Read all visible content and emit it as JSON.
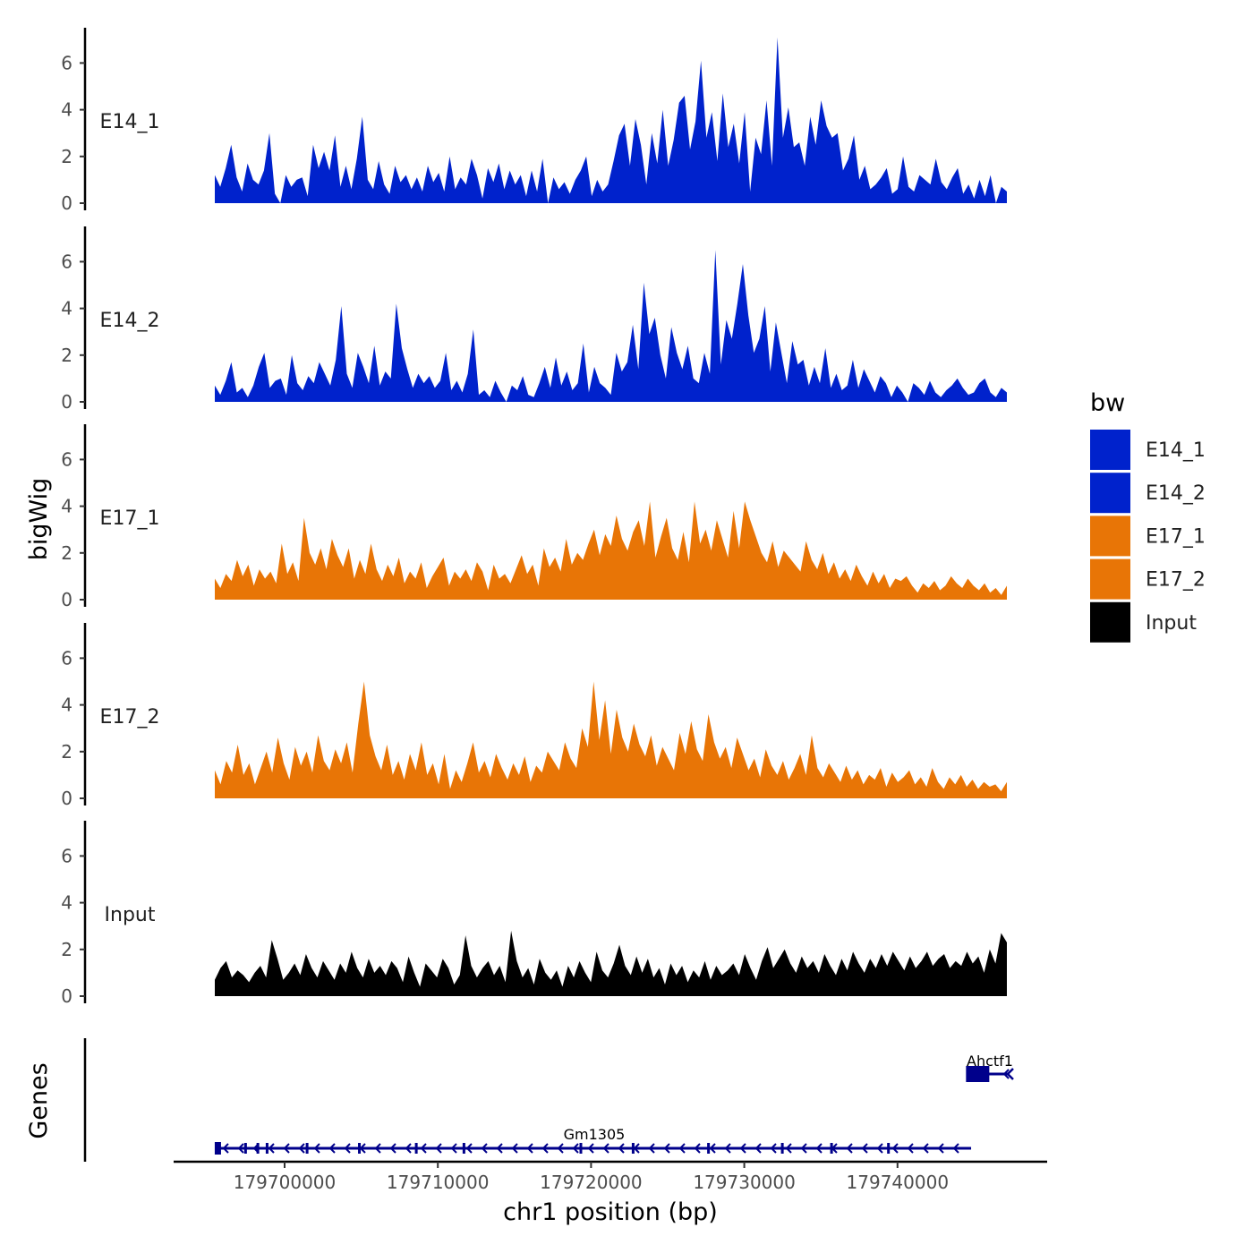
{
  "chart_data": {
    "type": "area",
    "title": "",
    "ylabel": "bigWig",
    "xlabel": "chr1 position (bp)",
    "gene_track_label": "Genes",
    "ylim": [
      0,
      7.3
    ],
    "yticks": [
      0,
      2,
      4,
      6
    ],
    "xlim": [
      179693000,
      179749000
    ],
    "xticks": [
      179700000,
      179710000,
      179720000,
      179730000,
      179740000
    ],
    "x_start": 179696200,
    "x_end": 179747700,
    "legend": {
      "title": "bw",
      "position": "right",
      "entries": [
        {
          "label": "E14_1",
          "color": "#0022CC"
        },
        {
          "label": "E14_2",
          "color": "#0022CC"
        },
        {
          "label": "E17_1",
          "color": "#E87506"
        },
        {
          "label": "E17_2",
          "color": "#E87506"
        },
        {
          "label": "Input",
          "color": "#000000"
        }
      ]
    },
    "series": [
      {
        "name": "E14_1",
        "color": "#0022CC",
        "values": [
          1.2,
          0.7,
          1.5,
          2.5,
          1.1,
          0.5,
          1.7,
          1.0,
          0.8,
          1.4,
          3.0,
          0.4,
          0.0,
          1.2,
          0.7,
          1.0,
          1.1,
          0.3,
          2.5,
          1.5,
          2.2,
          1.4,
          2.9,
          0.7,
          1.6,
          0.6,
          1.9,
          3.7,
          1.0,
          0.6,
          1.8,
          0.8,
          0.4,
          1.6,
          0.9,
          1.2,
          0.6,
          1.1,
          0.5,
          1.6,
          0.9,
          1.3,
          0.5,
          2.0,
          0.6,
          1.1,
          0.8,
          1.9,
          1.2,
          0.2,
          1.5,
          0.9,
          1.7,
          0.6,
          1.4,
          0.8,
          1.2,
          0.3,
          1.4,
          0.5,
          1.9,
          0.0,
          1.1,
          0.6,
          0.9,
          0.4,
          1.0,
          1.4,
          2.0,
          0.3,
          1.0,
          0.5,
          0.8,
          1.8,
          2.9,
          3.4,
          1.6,
          3.6,
          2.5,
          0.8,
          3.0,
          1.7,
          4.0,
          1.6,
          2.7,
          4.3,
          4.6,
          2.3,
          3.5,
          6.1,
          2.8,
          3.9,
          1.8,
          4.7,
          2.4,
          3.4,
          1.7,
          3.9,
          0.5,
          2.8,
          2.1,
          4.4,
          1.6,
          7.1,
          2.8,
          4.1,
          2.4,
          2.6,
          1.6,
          3.7,
          2.5,
          4.4,
          3.3,
          2.8,
          3.0,
          1.4,
          1.9,
          2.9,
          1.0,
          1.6,
          0.6,
          0.8,
          1.1,
          1.5,
          0.4,
          0.6,
          2.0,
          0.7,
          0.5,
          1.2,
          1.0,
          0.8,
          1.9,
          0.9,
          0.6,
          1.1,
          1.5,
          0.4,
          0.8,
          0.2,
          1.0,
          0.3,
          1.2,
          0.0,
          0.7,
          0.5
        ]
      },
      {
        "name": "E14_2",
        "color": "#0022CC",
        "values": [
          0.7,
          0.3,
          0.9,
          1.7,
          0.4,
          0.6,
          0.2,
          0.7,
          1.5,
          2.1,
          0.6,
          0.9,
          1.0,
          0.3,
          2.0,
          0.8,
          0.5,
          1.1,
          0.8,
          1.7,
          1.2,
          0.7,
          1.8,
          4.1,
          1.2,
          0.6,
          2.1,
          1.5,
          0.8,
          2.4,
          0.7,
          1.3,
          1.0,
          4.2,
          2.3,
          1.4,
          0.6,
          1.2,
          0.8,
          1.1,
          0.6,
          0.9,
          2.1,
          0.5,
          0.9,
          0.4,
          1.2,
          3.1,
          0.3,
          0.5,
          0.2,
          0.9,
          0.4,
          0.0,
          0.7,
          0.5,
          1.1,
          0.3,
          0.2,
          0.8,
          1.5,
          0.6,
          1.9,
          0.7,
          1.3,
          0.5,
          0.8,
          2.5,
          0.4,
          1.5,
          0.8,
          0.6,
          0.3,
          2.1,
          1.3,
          1.7,
          3.3,
          1.4,
          5.1,
          2.9,
          3.6,
          2.0,
          1.0,
          3.2,
          2.1,
          1.4,
          2.4,
          1.0,
          0.8,
          2.1,
          1.2,
          6.5,
          1.6,
          3.5,
          2.7,
          4.2,
          5.9,
          3.7,
          2.1,
          2.7,
          4.1,
          1.3,
          3.4,
          2.1,
          0.8,
          2.6,
          1.6,
          1.8,
          0.7,
          1.5,
          0.8,
          2.3,
          0.6,
          1.2,
          0.5,
          0.7,
          1.8,
          0.6,
          1.4,
          0.9,
          0.4,
          1.1,
          0.8,
          0.2,
          0.7,
          0.4,
          0.0,
          0.8,
          0.6,
          0.3,
          0.9,
          0.4,
          0.2,
          0.5,
          0.7,
          1.0,
          0.6,
          0.3,
          0.4,
          0.8,
          1.0,
          0.4,
          0.2,
          0.6,
          0.4
        ]
      },
      {
        "name": "E17_1",
        "color": "#E87506",
        "values": [
          0.9,
          0.5,
          1.1,
          0.8,
          1.7,
          1.0,
          1.5,
          0.6,
          1.3,
          0.9,
          1.2,
          0.7,
          2.4,
          1.1,
          1.6,
          0.8,
          3.5,
          2.0,
          1.5,
          2.2,
          1.3,
          2.6,
          1.9,
          1.4,
          2.2,
          0.9,
          1.7,
          1.1,
          2.4,
          1.3,
          0.8,
          1.5,
          1.0,
          1.8,
          0.7,
          1.2,
          0.9,
          1.6,
          0.5,
          1.0,
          1.4,
          1.8,
          0.6,
          1.2,
          0.9,
          1.3,
          0.8,
          1.6,
          1.2,
          0.4,
          1.5,
          0.9,
          1.1,
          0.7,
          1.3,
          1.9,
          1.1,
          1.5,
          0.6,
          2.2,
          1.4,
          1.8,
          1.2,
          2.6,
          1.5,
          2.0,
          1.7,
          2.4,
          3.0,
          1.9,
          2.8,
          2.3,
          3.6,
          2.6,
          2.1,
          2.9,
          3.4,
          2.3,
          4.2,
          1.8,
          2.7,
          3.5,
          2.2,
          1.7,
          2.9,
          1.6,
          4.2,
          2.4,
          3.0,
          2.1,
          3.4,
          2.6,
          1.8,
          3.8,
          2.2,
          4.2,
          3.4,
          2.7,
          2.0,
          1.6,
          2.5,
          1.4,
          2.1,
          1.8,
          1.5,
          1.2,
          2.5,
          1.7,
          1.3,
          2.0,
          1.1,
          1.6,
          0.9,
          1.3,
          0.8,
          1.5,
          1.0,
          0.6,
          1.2,
          0.7,
          1.1,
          0.5,
          0.9,
          0.8,
          1.0,
          0.6,
          0.3,
          0.7,
          0.5,
          0.8,
          0.4,
          0.6,
          1.0,
          0.7,
          0.5,
          0.9,
          0.6,
          0.4,
          0.7,
          0.3,
          0.5,
          0.2,
          0.6
        ]
      },
      {
        "name": "E17_2",
        "color": "#E87506",
        "values": [
          1.2,
          0.6,
          1.6,
          1.1,
          2.3,
          1.0,
          1.5,
          0.6,
          1.3,
          2.0,
          1.1,
          2.6,
          1.5,
          0.8,
          2.2,
          1.4,
          2.0,
          1.1,
          2.7,
          1.6,
          1.2,
          2.1,
          1.5,
          2.4,
          1.1,
          3.2,
          5.0,
          2.7,
          1.8,
          1.2,
          2.3,
          1.0,
          1.6,
          0.8,
          1.9,
          1.2,
          2.4,
          1.0,
          1.5,
          0.6,
          1.9,
          0.4,
          1.2,
          0.7,
          1.5,
          2.4,
          1.1,
          1.6,
          0.9,
          1.9,
          1.3,
          0.8,
          1.5,
          1.0,
          1.8,
          0.7,
          1.4,
          1.1,
          2.0,
          1.6,
          1.2,
          2.4,
          1.7,
          1.3,
          3.0,
          2.2,
          5.0,
          2.5,
          4.2,
          1.9,
          3.8,
          2.6,
          2.0,
          3.2,
          2.3,
          1.8,
          2.7,
          1.4,
          2.2,
          1.7,
          1.2,
          2.8,
          1.9,
          3.3,
          2.1,
          1.6,
          3.6,
          2.4,
          1.7,
          2.2,
          1.3,
          2.6,
          1.9,
          1.2,
          1.7,
          0.9,
          2.1,
          1.4,
          1.0,
          1.6,
          0.8,
          1.3,
          1.9,
          1.0,
          2.7,
          1.3,
          0.9,
          1.5,
          1.1,
          0.7,
          1.4,
          0.8,
          1.2,
          0.6,
          1.0,
          0.8,
          1.3,
          0.5,
          1.1,
          0.7,
          0.9,
          1.2,
          0.6,
          0.9,
          0.5,
          1.3,
          0.7,
          0.4,
          0.9,
          0.6,
          1.0,
          0.5,
          0.8,
          0.4,
          0.7,
          0.5,
          0.6,
          0.3,
          0.7
        ]
      },
      {
        "name": "Input",
        "color": "#000000",
        "values": [
          0.7,
          1.2,
          1.5,
          0.8,
          1.1,
          0.9,
          0.6,
          1.0,
          1.3,
          0.8,
          2.4,
          1.6,
          0.7,
          1.0,
          1.4,
          0.9,
          1.8,
          1.2,
          0.8,
          1.5,
          1.1,
          0.7,
          1.4,
          1.0,
          1.9,
          1.2,
          0.8,
          1.6,
          1.0,
          1.3,
          0.9,
          1.5,
          1.2,
          0.6,
          1.7,
          1.0,
          0.4,
          1.4,
          1.1,
          0.8,
          1.6,
          1.2,
          0.5,
          0.9,
          2.6,
          1.3,
          0.8,
          1.2,
          1.5,
          0.9,
          1.3,
          0.6,
          2.8,
          1.5,
          0.8,
          1.2,
          0.5,
          1.6,
          1.0,
          0.7,
          1.1,
          0.4,
          1.3,
          0.8,
          1.5,
          1.0,
          0.6,
          1.9,
          1.1,
          0.8,
          1.4,
          2.2,
          1.3,
          0.9,
          1.7,
          1.0,
          1.6,
          0.8,
          1.2,
          0.5,
          1.4,
          0.9,
          1.3,
          0.6,
          1.1,
          0.8,
          1.5,
          0.7,
          1.3,
          0.9,
          1.1,
          1.4,
          0.9,
          1.8,
          1.2,
          0.7,
          1.5,
          2.1,
          1.2,
          1.6,
          2.0,
          1.4,
          1.0,
          1.7,
          1.2,
          1.5,
          1.0,
          1.8,
          1.3,
          0.9,
          1.6,
          1.1,
          1.9,
          1.4,
          1.0,
          1.6,
          1.2,
          1.8,
          1.3,
          1.9,
          1.5,
          1.1,
          1.7,
          1.2,
          1.5,
          1.9,
          1.3,
          1.6,
          1.8,
          1.2,
          1.5,
          1.3,
          1.9,
          1.4,
          1.7,
          1.0,
          2.0,
          1.4,
          2.7,
          2.3
        ]
      }
    ],
    "genes": [
      {
        "name": "Gm1305",
        "row": 0,
        "start": 179696200,
        "end": 179745200,
        "strand": "-",
        "exons": [
          179696400,
          179698200,
          179699000,
          179699600,
          179702200,
          179705600,
          179709300,
          179712400,
          179720000,
          179723400,
          179728300,
          179733100,
          179736300,
          179740000
        ]
      },
      {
        "name": "Ahctf1",
        "row": 1,
        "start": 179745200,
        "end": 179747700,
        "strand": "-",
        "exons": [
          179745800
        ]
      }
    ]
  }
}
